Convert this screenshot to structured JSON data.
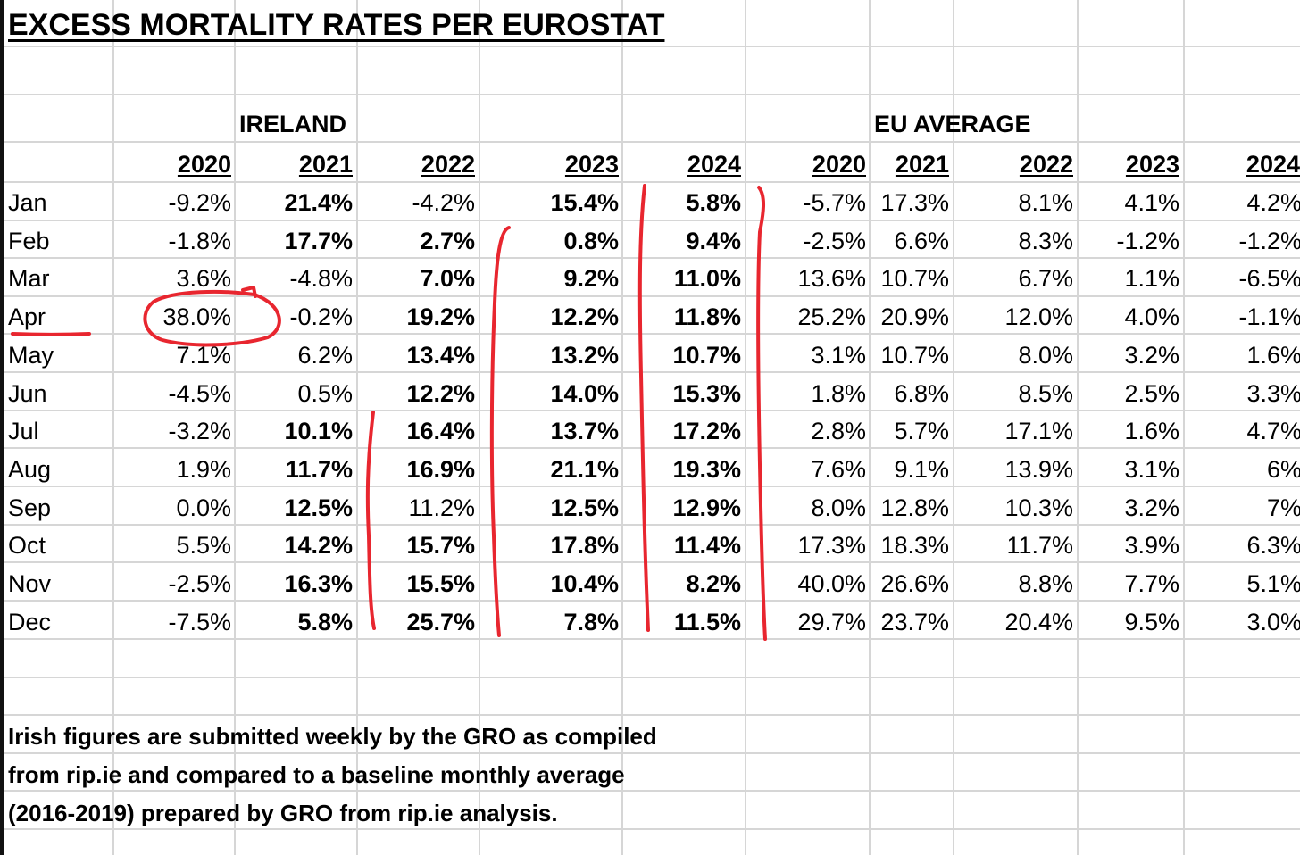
{
  "title": "EXCESS MORTALITY RATES PER EUROSTAT",
  "regions": {
    "ireland": "IRELAND",
    "eu": "EU AVERAGE"
  },
  "years": [
    "2020",
    "2021",
    "2022",
    "2023",
    "2024",
    "2020",
    "2021",
    "2022",
    "2023",
    "2024"
  ],
  "rows": [
    {
      "month": "Jan",
      "values": [
        "-9.2%",
        "21.4%",
        "-4.2%",
        "15.4%",
        "5.8%",
        "-5.7%",
        "17.3%",
        "8.1%",
        "4.1%",
        "4.2%"
      ],
      "bold": [
        false,
        true,
        false,
        true,
        true,
        false,
        false,
        false,
        false,
        false
      ]
    },
    {
      "month": "Feb",
      "values": [
        "-1.8%",
        "17.7%",
        "2.7%",
        "0.8%",
        "9.4%",
        "-2.5%",
        "6.6%",
        "8.3%",
        "-1.2%",
        "-1.2%"
      ],
      "bold": [
        false,
        true,
        true,
        true,
        true,
        false,
        false,
        false,
        false,
        false
      ]
    },
    {
      "month": "Mar",
      "values": [
        "3.6%",
        "-4.8%",
        "7.0%",
        "9.2%",
        "11.0%",
        "13.6%",
        "10.7%",
        "6.7%",
        "1.1%",
        "-6.5%"
      ],
      "bold": [
        false,
        false,
        true,
        true,
        true,
        false,
        false,
        false,
        false,
        false
      ]
    },
    {
      "month": "Apr",
      "values": [
        "38.0%",
        "-0.2%",
        "19.2%",
        "12.2%",
        "11.8%",
        "25.2%",
        "20.9%",
        "12.0%",
        "4.0%",
        "-1.1%"
      ],
      "bold": [
        false,
        false,
        true,
        true,
        true,
        false,
        false,
        false,
        false,
        false
      ]
    },
    {
      "month": "May",
      "values": [
        "7.1%",
        "6.2%",
        "13.4%",
        "13.2%",
        "10.7%",
        "3.1%",
        "10.7%",
        "8.0%",
        "3.2%",
        "1.6%"
      ],
      "bold": [
        false,
        false,
        true,
        true,
        true,
        false,
        false,
        false,
        false,
        false
      ]
    },
    {
      "month": "Jun",
      "values": [
        "-4.5%",
        "0.5%",
        "12.2%",
        "14.0%",
        "15.3%",
        "1.8%",
        "6.8%",
        "8.5%",
        "2.5%",
        "3.3%"
      ],
      "bold": [
        false,
        false,
        true,
        true,
        true,
        false,
        false,
        false,
        false,
        false
      ]
    },
    {
      "month": "Jul",
      "values": [
        "-3.2%",
        "10.1%",
        "16.4%",
        "13.7%",
        "17.2%",
        "2.8%",
        "5.7%",
        "17.1%",
        "1.6%",
        "4.7%"
      ],
      "bold": [
        false,
        true,
        true,
        true,
        true,
        false,
        false,
        false,
        false,
        false
      ]
    },
    {
      "month": "Aug",
      "values": [
        "1.9%",
        "11.7%",
        "16.9%",
        "21.1%",
        "19.3%",
        "7.6%",
        "9.1%",
        "13.9%",
        "3.1%",
        "6%"
      ],
      "bold": [
        false,
        true,
        true,
        true,
        true,
        false,
        false,
        false,
        false,
        false
      ]
    },
    {
      "month": "Sep",
      "values": [
        "0.0%",
        "12.5%",
        "11.2%",
        "12.5%",
        "12.9%",
        "8.0%",
        "12.8%",
        "10.3%",
        "3.2%",
        "7%"
      ],
      "bold": [
        false,
        true,
        false,
        true,
        true,
        false,
        false,
        false,
        false,
        false
      ]
    },
    {
      "month": "Oct",
      "values": [
        "5.5%",
        "14.2%",
        "15.7%",
        "17.8%",
        "11.4%",
        "17.3%",
        "18.3%",
        "11.7%",
        "3.9%",
        "6.3%"
      ],
      "bold": [
        false,
        true,
        true,
        true,
        true,
        false,
        false,
        false,
        false,
        false
      ]
    },
    {
      "month": "Nov",
      "values": [
        "-2.5%",
        "16.3%",
        "15.5%",
        "10.4%",
        "8.2%",
        "40.0%",
        "26.6%",
        "8.8%",
        "7.7%",
        "5.1%"
      ],
      "bold": [
        false,
        true,
        true,
        true,
        true,
        false,
        false,
        false,
        false,
        false
      ]
    },
    {
      "month": "Dec",
      "values": [
        "-7.5%",
        "5.8%",
        "25.7%",
        "7.8%",
        "11.5%",
        "29.7%",
        "23.7%",
        "20.4%",
        "9.5%",
        "3.0%"
      ],
      "bold": [
        false,
        true,
        true,
        true,
        true,
        false,
        false,
        false,
        false,
        false
      ]
    }
  ],
  "note_lines": [
    "Irish figures are submitted weekly by the GRO as compiled",
    "from rip.ie and compared to a baseline monthly average",
    "(2016-2019) prepared by GRO from rip.ie analysis."
  ],
  "colors": {
    "annotation": "#e8262f",
    "gridline": "#d6d6d6"
  }
}
